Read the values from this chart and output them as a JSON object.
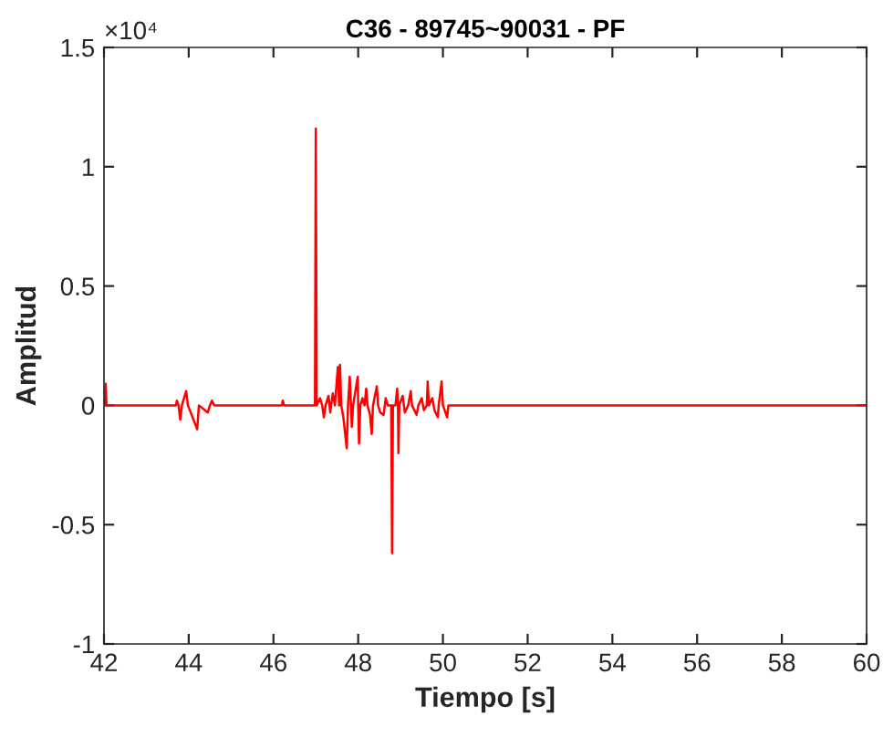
{
  "chart_data": {
    "type": "line",
    "title": "C36 - 89745~90031 - PF",
    "xlabel": "Tiempo [s]",
    "ylabel": "Amplitud",
    "annotations": [
      "×10⁴"
    ],
    "xlim": [
      42,
      60
    ],
    "ylim": [
      -1,
      1.5
    ],
    "xticks": [
      42,
      44,
      46,
      48,
      50,
      52,
      54,
      56,
      58,
      60
    ],
    "yticks": [
      -1,
      -0.5,
      0,
      0.5,
      1,
      1.5
    ],
    "grid": false,
    "marker": "none",
    "line_style": "solid",
    "series": [
      {
        "color": "#ff0000",
        "x": [
          42,
          42.04,
          42.06,
          43.7,
          43.72,
          43.76,
          43.8,
          43.84,
          43.94,
          43.98,
          44.2,
          44.24,
          44.45,
          44.5,
          44.55,
          44.6,
          46.2,
          46.22,
          46.25,
          46.98,
          47.0,
          47.02,
          47.1,
          47.15,
          47.19,
          47.23,
          47.3,
          47.34,
          47.4,
          47.45,
          47.52,
          47.55,
          47.57,
          47.6,
          47.65,
          47.73,
          47.76,
          47.8,
          47.83,
          47.85,
          47.88,
          47.99,
          48.0,
          48.02,
          48.05,
          48.1,
          48.15,
          48.19,
          48.22,
          48.28,
          48.32,
          48.35,
          48.44,
          48.47,
          48.52,
          48.6,
          48.65,
          48.7,
          48.78,
          48.8,
          48.82,
          48.88,
          48.92,
          48.94,
          48.95,
          48.97,
          49.05,
          49.1,
          49.18,
          49.24,
          49.27,
          49.38,
          49.42,
          49.5,
          49.55,
          49.62,
          49.64,
          49.67,
          49.75,
          49.8,
          49.88,
          49.9,
          49.97,
          50.0,
          50.1,
          50.13,
          60
        ],
        "values": [
          0,
          0.09,
          0,
          0,
          0.02,
          0,
          -0.06,
          0,
          0.06,
          0,
          -0.1,
          0,
          -0.03,
          0,
          0.02,
          0,
          0,
          0.02,
          0,
          0,
          1.16,
          0,
          0.03,
          0,
          -0.05,
          0,
          0.04,
          -0.03,
          0.05,
          0,
          0.16,
          0,
          0.17,
          0,
          -0.05,
          -0.18,
          0,
          0.12,
          0,
          -0.09,
          0,
          0.12,
          0,
          -0.16,
          0,
          0.03,
          0,
          0.07,
          0,
          -0.04,
          -0.12,
          0,
          0.08,
          0,
          -0.03,
          -0.04,
          0.03,
          0,
          0,
          -0.62,
          0,
          0,
          0.07,
          0,
          -0.2,
          0,
          0.04,
          -0.03,
          0,
          0.06,
          0,
          -0.04,
          0,
          0.03,
          -0.02,
          0,
          0.1,
          0,
          0.03,
          -0.02,
          -0.05,
          0,
          0.1,
          0,
          -0.05,
          0,
          0
        ]
      }
    ]
  }
}
